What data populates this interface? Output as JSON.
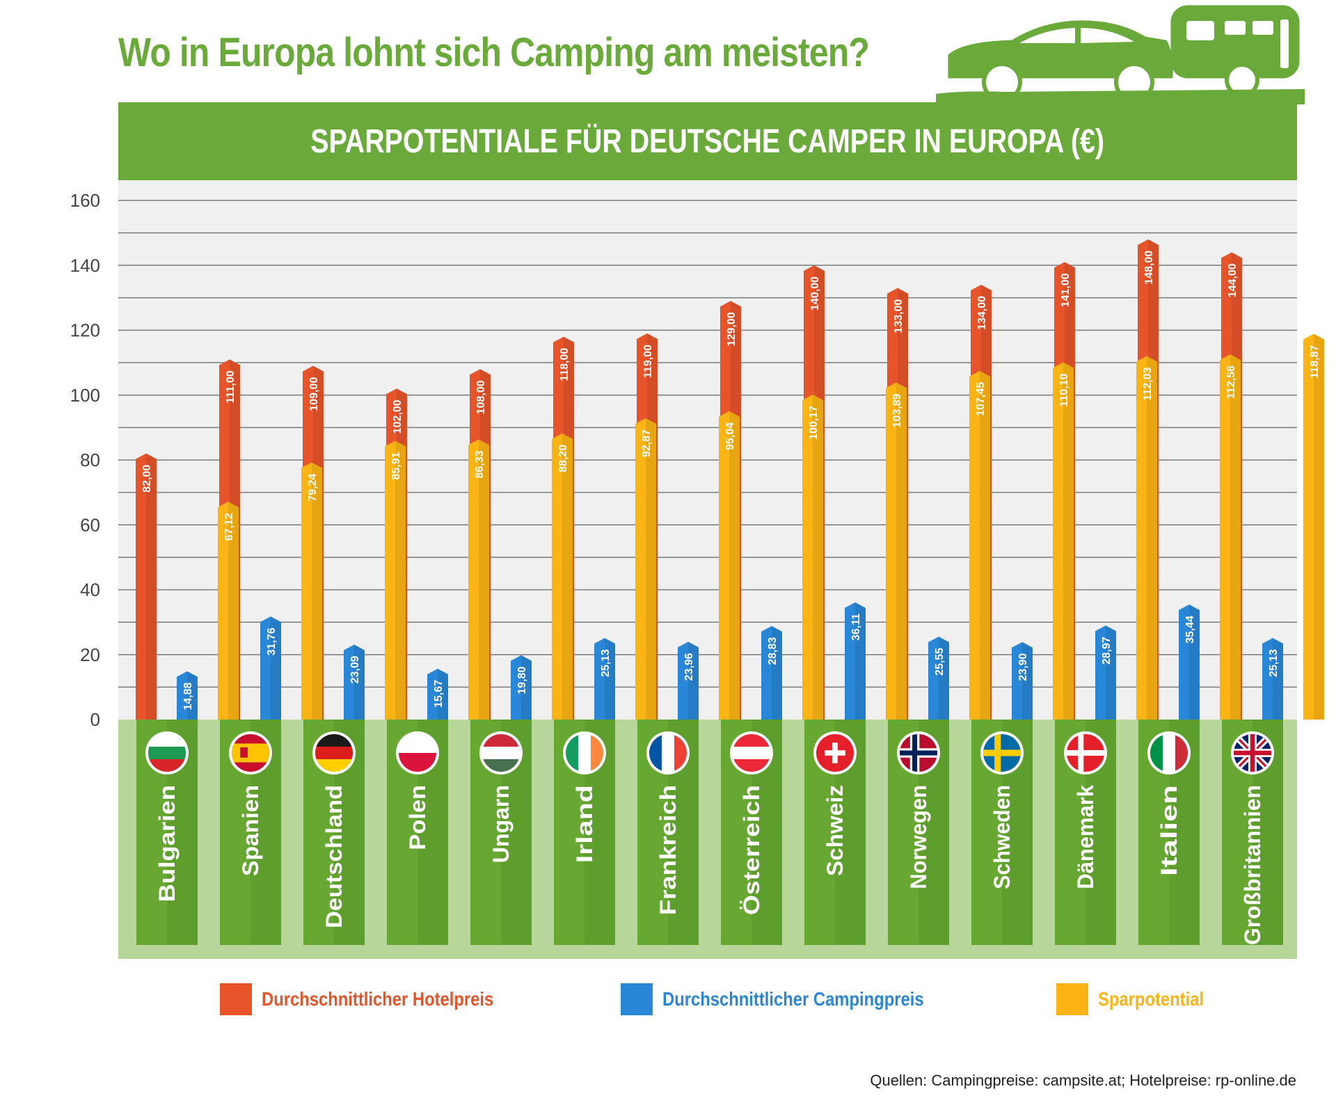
{
  "title": "Wo in Europa lohnt sich Camping am meisten?",
  "icons": {
    "car_caravan": "car-with-caravan-icon"
  },
  "chart_data": {
    "type": "bar",
    "title": "SPARPOTENTIALE FÜR DEUTSCHE CAMPER IN EUROPA (€)",
    "xlabel": "",
    "ylabel": "",
    "ylim": [
      0,
      160
    ],
    "yticks": [
      0,
      20,
      40,
      60,
      80,
      100,
      120,
      140,
      160
    ],
    "grid": true,
    "legend_position": "bottom",
    "categories": [
      "Bulgarien",
      "Spanien",
      "Deutschland",
      "Polen",
      "Ungarn",
      "Irland",
      "Frankreich",
      "Österreich",
      "Schweiz",
      "Norwegen",
      "Schweden",
      "Dänemark",
      "Italien",
      "Großbritannien"
    ],
    "series": [
      {
        "name": "Durchschnittlicher Hotelpreis",
        "color": "#e8542a",
        "values": [
          82.0,
          111.0,
          109.0,
          102.0,
          108.0,
          118.0,
          119.0,
          129.0,
          140.0,
          133.0,
          134.0,
          141.0,
          148.0,
          144.0
        ],
        "labels": [
          "82,00",
          "111,00",
          "109,00",
          "102,00",
          "108,00",
          "118,00",
          "119,00",
          "129,00",
          "140,00",
          "133,00",
          "134,00",
          "141,00",
          "148,00",
          "144,00"
        ]
      },
      {
        "name": "Durchschnittlicher Campingpreis",
        "color": "#2a86d6",
        "values": [
          14.88,
          31.76,
          23.09,
          15.67,
          19.8,
          25.13,
          23.96,
          28.83,
          36.11,
          25.55,
          23.9,
          28.97,
          35.44,
          25.13
        ],
        "labels": [
          "14,88",
          "31,76",
          "23,09",
          "15,67",
          "19,80",
          "25,13",
          "23,96",
          "28,83",
          "36,11",
          "25,55",
          "23,90",
          "28,97",
          "35,44",
          "25,13"
        ]
      },
      {
        "name": "Sparpotential",
        "color": "#fbb414",
        "values": [
          67.12,
          79.24,
          85.91,
          86.33,
          88.2,
          92.87,
          95.04,
          100.17,
          103.89,
          107.45,
          110.1,
          112.03,
          112.56,
          118.87
        ],
        "labels": [
          "67,12",
          "79,24",
          "85,91",
          "86,33",
          "88,20",
          "92,87",
          "95,04",
          "100,17",
          "103,89",
          "107,45",
          "110,10",
          "112,03",
          "112,56",
          "118,87"
        ]
      }
    ],
    "flags": [
      "bulgaria-flag-icon",
      "spain-flag-icon",
      "germany-flag-icon",
      "poland-flag-icon",
      "hungary-flag-icon",
      "ireland-flag-icon",
      "france-flag-icon",
      "austria-flag-icon",
      "switzerland-flag-icon",
      "norway-flag-icon",
      "sweden-flag-icon",
      "denmark-flag-icon",
      "italy-flag-icon",
      "uk-flag-icon"
    ]
  },
  "source_note": "Quellen: Campingpreise: campsite.at; Hotelpreise: rp-online.de"
}
